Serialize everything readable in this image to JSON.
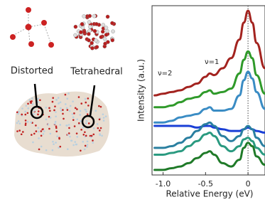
{
  "illustration": {
    "labels": [
      "Distorted",
      "Tetrahedral"
    ]
  },
  "chart_data": {
    "type": "line",
    "xlabel": "Relative Energy (eV)",
    "ylabel": "Intensity (a.u.)",
    "annotations": [
      "ν=2",
      "ν=1"
    ],
    "x": [
      -1.1,
      -1.0,
      -0.9,
      -0.8,
      -0.7,
      -0.6,
      -0.5,
      -0.45,
      -0.4,
      -0.3,
      -0.2,
      -0.1,
      -0.05,
      0,
      0.05,
      0.1,
      0.2
    ],
    "series": [
      {
        "color": "#a3231f",
        "values": [
          4.7,
          4.8,
          4.9,
          5.0,
          5.2,
          5.4,
          5.8,
          6.0,
          5.9,
          6.3,
          6.9,
          8.0,
          9.0,
          9.7,
          9.0,
          7.8,
          6.3
        ]
      },
      {
        "color": "#2f9a2a",
        "values": [
          4.0,
          4.0,
          4.1,
          4.3,
          4.5,
          4.6,
          4.9,
          5.0,
          4.8,
          4.9,
          5.1,
          6.0,
          6.8,
          7.3,
          6.9,
          5.9,
          4.8
        ]
      },
      {
        "color": "#3a8cc4",
        "values": [
          3.1,
          3.1,
          3.2,
          3.4,
          3.5,
          3.6,
          3.9,
          4.0,
          3.8,
          3.8,
          3.9,
          4.7,
          5.6,
          6.1,
          5.7,
          4.9,
          3.9
        ]
      },
      {
        "color": "#1a3fd6",
        "values": [
          2.9,
          2.9,
          2.9,
          2.9,
          2.9,
          2.8,
          2.9,
          2.9,
          2.8,
          2.7,
          2.6,
          2.6,
          2.7,
          2.8,
          2.7,
          2.6,
          2.5
        ]
      },
      {
        "color": "#2a7fa0",
        "values": [
          1.6,
          1.6,
          1.7,
          1.9,
          2.2,
          2.6,
          3.0,
          3.1,
          2.9,
          2.3,
          2.0,
          2.3,
          2.7,
          2.9,
          2.7,
          2.2,
          1.7
        ]
      },
      {
        "color": "#2a9a80",
        "values": [
          1.2,
          1.2,
          1.3,
          1.4,
          1.7,
          2.0,
          2.4,
          2.5,
          2.3,
          1.7,
          1.4,
          1.7,
          2.1,
          2.2,
          2.0,
          1.6,
          1.2
        ]
      },
      {
        "color": "#1f7a28",
        "values": [
          0.3,
          0.3,
          0.4,
          0.5,
          0.7,
          1.0,
          1.3,
          1.4,
          1.2,
          0.7,
          0.5,
          0.9,
          1.6,
          1.9,
          1.7,
          1.1,
          0.6
        ]
      }
    ],
    "xlim": [
      -1.13,
      0.2
    ],
    "ylim": [
      0,
      10
    ],
    "xticks": [
      {
        "value": -1,
        "label": "-1.0"
      },
      -0.5,
      0
    ],
    "vline": 0
  }
}
